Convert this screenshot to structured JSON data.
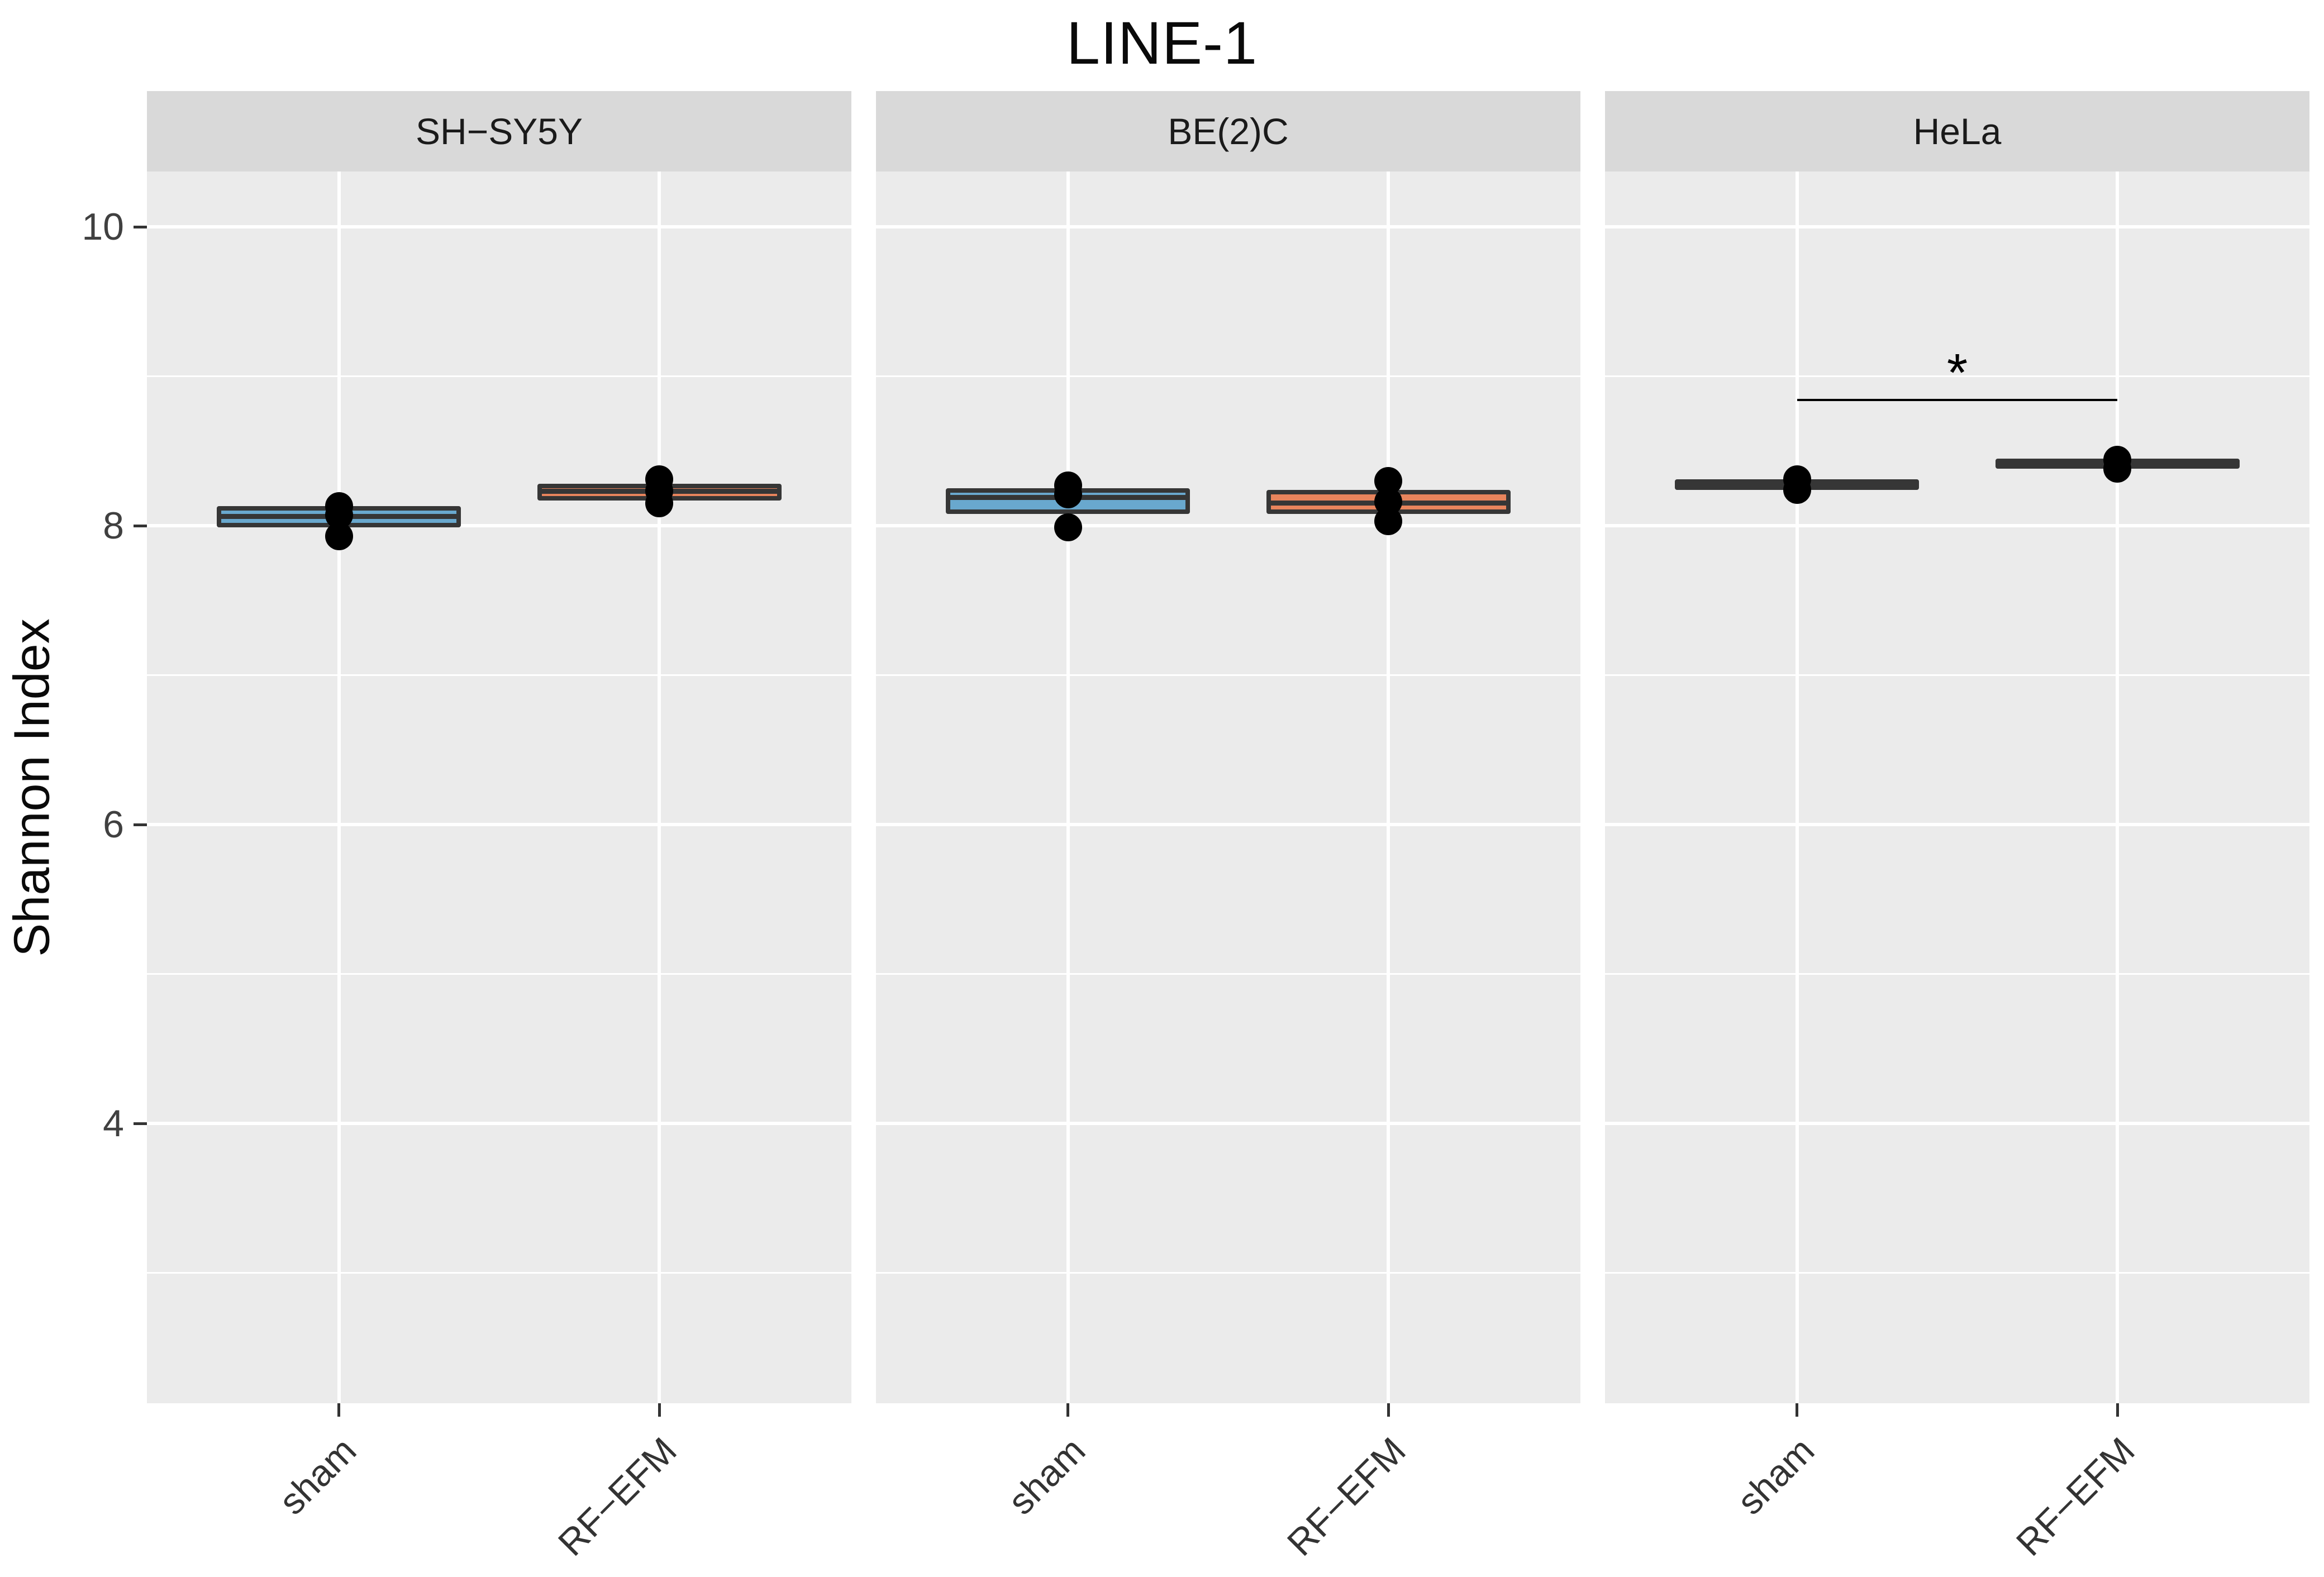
{
  "chart_data": {
    "type": "boxplot",
    "title": "LINE-1",
    "ylabel": "Shannon Index",
    "y_axis": {
      "ticks": [
        10,
        8,
        6,
        4
      ],
      "minor_gridlines": [
        9,
        7,
        5,
        3
      ],
      "range": [
        2.1,
        10.4
      ],
      "grid": "white-on-gray"
    },
    "categories": [
      "sham",
      "RF−EFM"
    ],
    "facets": [
      {
        "label": "SH−SY5Y",
        "boxes": [
          {
            "category": "sham",
            "q1": 7.99,
            "median": 8.06,
            "q3": 8.13,
            "fill": "#69A8CE",
            "points": [
              8.13,
              8.07,
              7.93
            ]
          },
          {
            "category": "RF−EFM",
            "q1": 8.17,
            "median": 8.23,
            "q3": 8.28,
            "fill": "#E8845C",
            "points": [
              8.31,
              8.23,
              8.15
            ]
          }
        ]
      },
      {
        "label": "BE(2)C",
        "boxes": [
          {
            "category": "sham",
            "q1": 8.08,
            "median": 8.19,
            "q3": 8.25,
            "fill": "#69A8CE",
            "points": [
              8.27,
              8.21,
              7.99
            ]
          },
          {
            "category": "RF−EFM",
            "q1": 8.08,
            "median": 8.15,
            "q3": 8.24,
            "fill": "#E8845C",
            "points": [
              8.3,
              8.16,
              8.03
            ]
          }
        ]
      },
      {
        "label": "HeLa",
        "boxes": [
          {
            "category": "sham",
            "q1": 8.24,
            "median": 8.28,
            "q3": 8.31,
            "fill": "#69A8CE",
            "points": [
              8.31,
              8.24
            ]
          },
          {
            "category": "RF−EFM",
            "q1": 8.38,
            "median": 8.42,
            "q3": 8.45,
            "fill": "#E8845C",
            "points": [
              8.44,
              8.38
            ]
          }
        ]
      }
    ],
    "significance": {
      "facet": "HeLa",
      "between": [
        "sham",
        "RF−EFM"
      ],
      "label": "*",
      "bar_y": 8.84,
      "label_y": 9.02
    },
    "colors": {
      "box_border": "#363636",
      "point": "#000000",
      "panel_bg": "#EBEBEB",
      "strip_bg": "#D9D9D9",
      "gridline": "#FFFFFF",
      "axis_text": "#404040",
      "tick_mark": "#333333",
      "sham_fill": "#69A8CE",
      "rfefm_fill": "#E8845C"
    }
  }
}
